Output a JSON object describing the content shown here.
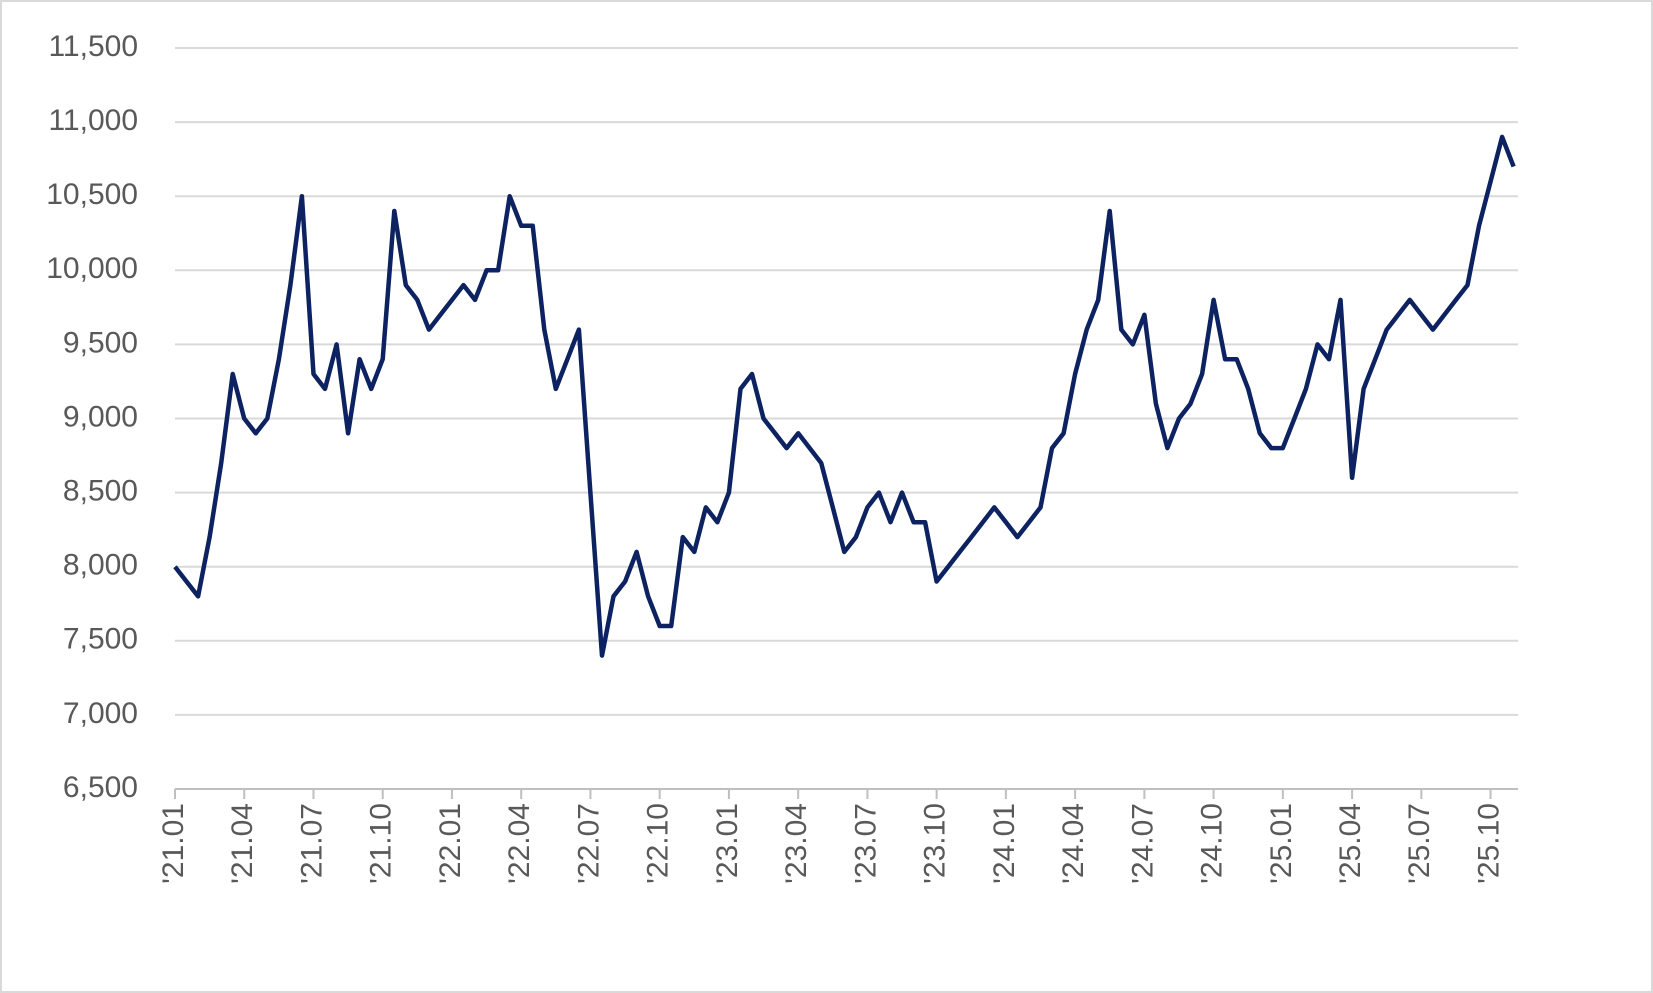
{
  "chart_data": {
    "type": "line",
    "color": "#0d2260",
    "grid": true,
    "categories": [
      "'21.01",
      null,
      null,
      null,
      null,
      null,
      "'21.04",
      null,
      null,
      null,
      null,
      null,
      "'21.07",
      null,
      null,
      null,
      null,
      null,
      "'21.10",
      null,
      null,
      null,
      null,
      null,
      "'22.01",
      null,
      null,
      null,
      null,
      null,
      "'22.04",
      null,
      null,
      null,
      null,
      null,
      "'22.07",
      null,
      null,
      null,
      null,
      null,
      "'22.10",
      null,
      null,
      null,
      null,
      null,
      "'23.01",
      null,
      null,
      null,
      null,
      null,
      "'23.04",
      null,
      null,
      null,
      null,
      null,
      "'23.07",
      null,
      null,
      null,
      null,
      null,
      "'23.10",
      null,
      null,
      null,
      null,
      null,
      "'24.01",
      null,
      null,
      null,
      null,
      null,
      "'24.04",
      null,
      null,
      null,
      null,
      null,
      "'24.07",
      null,
      null,
      null,
      null,
      null,
      "'24.10",
      null,
      null,
      null,
      null,
      null,
      "'25.01",
      null,
      null,
      null,
      null,
      null,
      "'25.04",
      null,
      null,
      null,
      null,
      null,
      "'25.07",
      null,
      null,
      null,
      null,
      null,
      "'25.10",
      null,
      null
    ],
    "values": [
      8000,
      7900,
      7800,
      8200,
      8700,
      9300,
      9000,
      8900,
      9000,
      9400,
      9900,
      10500,
      9300,
      9200,
      9500,
      8900,
      9400,
      9200,
      9400,
      10400,
      9900,
      9800,
      9600,
      9700,
      9800,
      9900,
      9800,
      10000,
      10000,
      10500,
      10300,
      10300,
      9600,
      9200,
      9400,
      9600,
      8500,
      7400,
      7800,
      7900,
      8100,
      7800,
      7600,
      7600,
      8200,
      8100,
      8400,
      8300,
      8500,
      9200,
      9300,
      9000,
      8900,
      8800,
      8900,
      8800,
      8700,
      8400,
      8100,
      8200,
      8400,
      8500,
      8300,
      8500,
      8300,
      8300,
      7900,
      8000,
      8100,
      8200,
      8300,
      8400,
      8300,
      8200,
      8300,
      8400,
      8800,
      8900,
      9300,
      9600,
      9800,
      10400,
      9600,
      9500,
      9700,
      9100,
      8800,
      9000,
      9100,
      9300,
      9800,
      9400,
      9400,
      9200,
      8900,
      8800,
      8800,
      9000,
      9200,
      9500,
      9400,
      9800,
      8600,
      9200,
      9400,
      9600,
      9700,
      9800,
      9700,
      9600,
      9700,
      9800,
      9900,
      10300,
      10600,
      10900,
      10700
    ],
    "ylim": [
      6500,
      11500
    ],
    "yticks": [
      {
        "value": 6500,
        "label": "6,500"
      },
      {
        "value": 7000,
        "label": "7,000"
      },
      {
        "value": 7500,
        "label": "7,500"
      },
      {
        "value": 8000,
        "label": "8,000"
      },
      {
        "value": 8500,
        "label": "8,500"
      },
      {
        "value": 9000,
        "label": "9,000"
      },
      {
        "value": 9500,
        "label": "9,500"
      },
      {
        "value": 10000,
        "label": "10,000"
      },
      {
        "value": 10500,
        "label": "10,500"
      },
      {
        "value": 11000,
        "label": "11,000"
      },
      {
        "value": 11500,
        "label": "11,500"
      }
    ]
  }
}
